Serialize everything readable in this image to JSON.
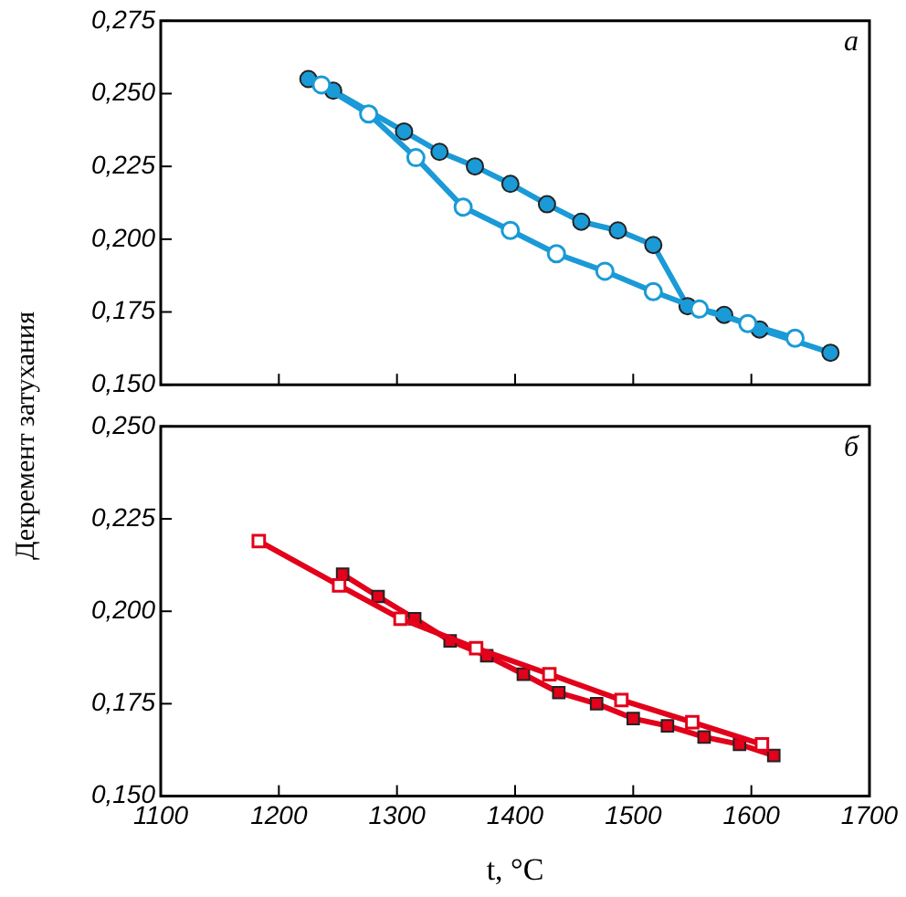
{
  "chart_data": [
    {
      "type": "line",
      "ylabel": "Декремент затухания",
      "annotations": [
        "а"
      ],
      "xlim": [
        1100,
        1700
      ],
      "xticks": [
        1100,
        1200,
        1300,
        1400,
        1500,
        1600,
        1700
      ],
      "ylim": [
        0.15,
        0.275
      ],
      "yticks": [
        {
          "value": 0.15,
          "label": "0,150"
        },
        {
          "value": 0.175,
          "label": "0,175"
        },
        {
          "value": 0.2,
          "label": "0,200"
        },
        {
          "value": 0.225,
          "label": "0,225"
        },
        {
          "value": 0.25,
          "label": "0,250"
        },
        {
          "value": 0.275,
          "label": "0,275"
        }
      ],
      "tick_labels": "y",
      "grid": false,
      "legend": false,
      "marker": "circle",
      "series": [
        {
          "color": "#1a9ad6",
          "x": [
            1225,
            1246,
            1306,
            1336,
            1366,
            1396,
            1427,
            1456,
            1487,
            1517,
            1546,
            1577,
            1607,
            1667
          ],
          "values": [
            0.255,
            0.251,
            0.237,
            0.23,
            0.225,
            0.219,
            0.212,
            0.206,
            0.203,
            0.198,
            0.177,
            0.174,
            0.169,
            0.161
          ]
        },
        {
          "color": "#1a9ad6",
          "x": [
            1236,
            1276,
            1316,
            1356,
            1396,
            1435,
            1476,
            1517,
            1556,
            1597,
            1637
          ],
          "values": [
            0.253,
            0.243,
            0.228,
            0.211,
            0.203,
            0.195,
            0.189,
            0.182,
            0.176,
            0.171,
            0.166
          ]
        }
      ]
    },
    {
      "type": "line",
      "xlabel": "t, °C",
      "annotations": [
        "б"
      ],
      "xlim": [
        1100,
        1700
      ],
      "xticks": [
        1100,
        1200,
        1300,
        1400,
        1500,
        1600,
        1700
      ],
      "ylim": [
        0.15,
        0.25
      ],
      "yticks": [
        {
          "value": 0.15,
          "label": "0,150"
        },
        {
          "value": 0.175,
          "label": "0,175"
        },
        {
          "value": 0.2,
          "label": "0,200"
        },
        {
          "value": 0.225,
          "label": "0,225"
        },
        {
          "value": 0.25,
          "label": "0,250"
        }
      ],
      "grid": false,
      "legend": false,
      "marker": "square",
      "series": [
        {
          "color": "#e2001a",
          "x": [
            1254,
            1284,
            1315,
            1345,
            1376,
            1407,
            1437,
            1469,
            1500,
            1529,
            1560,
            1590,
            1619
          ],
          "values": [
            0.21,
            0.204,
            0.198,
            0.192,
            0.188,
            0.183,
            0.178,
            0.175,
            0.171,
            0.169,
            0.166,
            0.164,
            0.161
          ]
        },
        {
          "color": "#e2001a",
          "x": [
            1183,
            1251,
            1303,
            1367,
            1429,
            1490,
            1550,
            1609
          ],
          "values": [
            0.219,
            0.207,
            0.198,
            0.19,
            0.183,
            0.176,
            0.17,
            0.164
          ]
        }
      ]
    }
  ]
}
